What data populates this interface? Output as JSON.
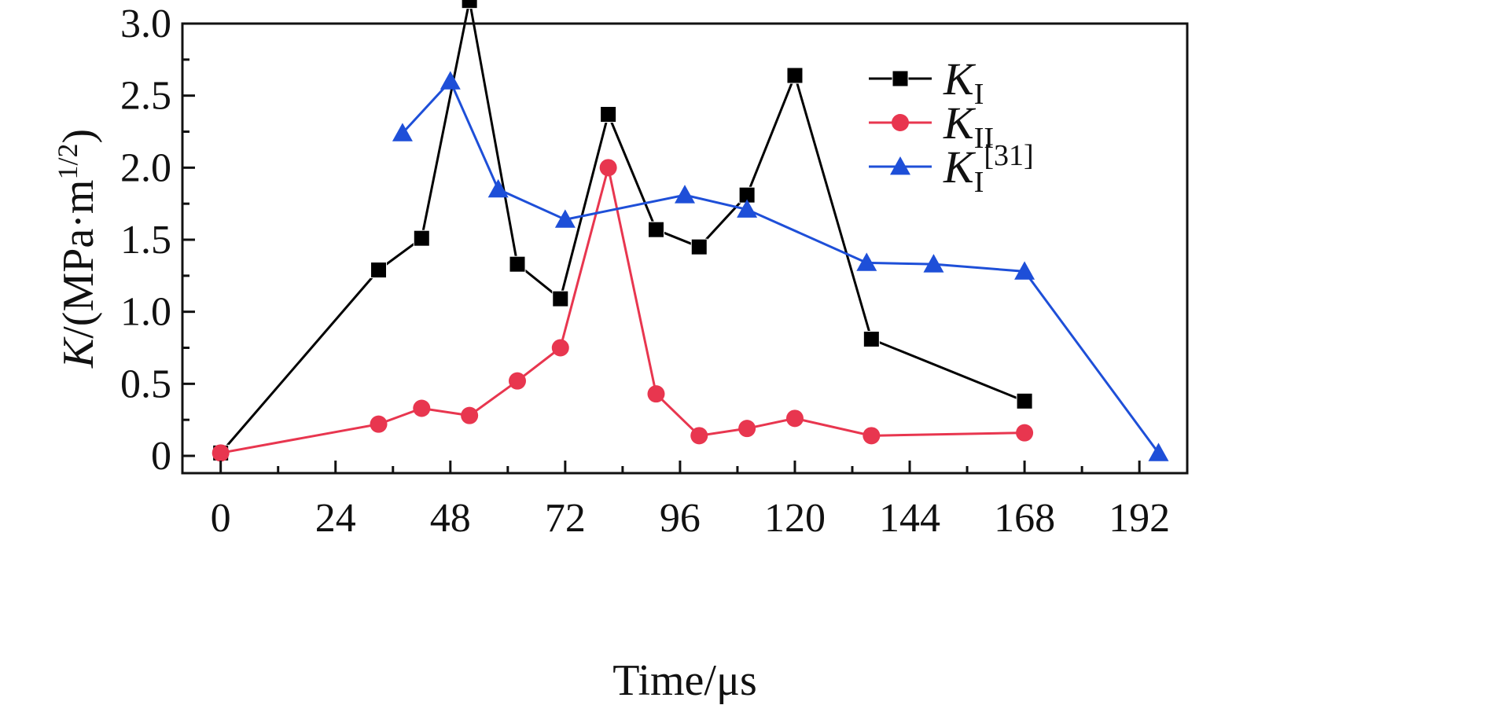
{
  "chart_data": {
    "type": "line",
    "title": "",
    "xlabel": "Time/μs",
    "ylabel_main": "K",
    "ylabel_unit": "/(MPa·m",
    "ylabel_exp": "1/2",
    "ylabel_close": ")",
    "xlim": [
      -8,
      202
    ],
    "ylim": [
      -0.12,
      3.0
    ],
    "xticks": [
      0,
      24,
      48,
      72,
      96,
      120,
      144,
      168,
      192
    ],
    "xtick_labels": [
      "0",
      "24",
      "48",
      "72",
      "96",
      "120",
      "144",
      "168",
      "192"
    ],
    "yticks": [
      0,
      0.5,
      1.0,
      1.5,
      2.0,
      2.5,
      3.0
    ],
    "ytick_labels": [
      "0",
      "0.5",
      "1.0",
      "1.5",
      "2.0",
      "2.5",
      "3.0"
    ],
    "grid": false,
    "legend_position": "top-right",
    "series": [
      {
        "name": "K",
        "name_sub": "I",
        "name_sup": "",
        "color": "#000000",
        "marker": "square",
        "x": [
          0,
          33,
          42,
          52,
          62,
          71,
          81,
          91,
          100,
          110,
          120,
          136,
          168
        ],
        "y": [
          0.02,
          1.29,
          1.51,
          3.16,
          1.33,
          1.09,
          2.37,
          1.57,
          1.45,
          1.81,
          2.64,
          0.81,
          0.38
        ]
      },
      {
        "name": "K",
        "name_sub": "II",
        "name_sup": "",
        "color": "#e8364f",
        "marker": "circle",
        "x": [
          0,
          33,
          42,
          52,
          62,
          71,
          81,
          91,
          100,
          110,
          120,
          136,
          168
        ],
        "y": [
          0.02,
          0.22,
          0.33,
          0.28,
          0.52,
          0.75,
          2.0,
          0.43,
          0.14,
          0.19,
          0.26,
          0.14,
          0.16
        ]
      },
      {
        "name": "K",
        "name_sub": "I",
        "name_sup": "[31]",
        "color": "#1e4fd8",
        "marker": "triangle",
        "x": [
          38,
          48,
          58,
          72,
          97,
          110,
          135,
          149,
          168,
          196
        ],
        "y": [
          2.24,
          2.6,
          1.85,
          1.64,
          1.81,
          1.71,
          1.34,
          1.33,
          1.28,
          0.02
        ]
      }
    ]
  }
}
